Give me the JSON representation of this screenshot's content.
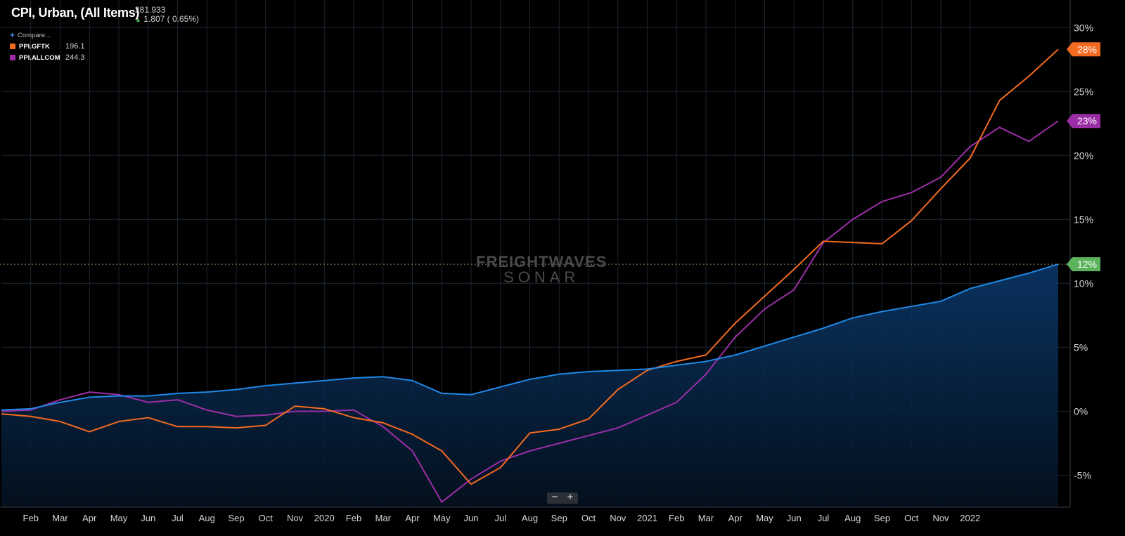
{
  "header": {
    "title": "CPI, Urban, (All Items)",
    "last_value": "281.933",
    "change": "1.807 ( 0.65%)"
  },
  "legend": {
    "compare_label": "Compare...",
    "items": [
      {
        "name": "PPI.GFTK",
        "value": "196.1",
        "color": "#f26b21"
      },
      {
        "name": "PPI.ALLCOM",
        "value": "244.3",
        "color": "#9b2ea6"
      }
    ]
  },
  "watermark": {
    "line1": "FREIGHTWAVES",
    "line2": "SONAR"
  },
  "zoom": {
    "minus": "−",
    "plus": "+"
  },
  "colors": {
    "cpi": "#1e88e5",
    "gftk": "#f26b21",
    "allcom": "#9b2ea6",
    "end_badge_cpi": "#5db35d"
  },
  "chart_data": {
    "type": "line",
    "ylim": [
      -7.5,
      31.5
    ],
    "y_ticks": [
      "-5%",
      "0%",
      "5%",
      "10%",
      "15%",
      "20%",
      "25%",
      "30%"
    ],
    "y_tick_values": [
      -5,
      0,
      5,
      10,
      15,
      20,
      25,
      30
    ],
    "x_ticks": [
      "Feb",
      "Mar",
      "Apr",
      "May",
      "Jun",
      "Jul",
      "Aug",
      "Sep",
      "Oct",
      "Nov",
      "2020",
      "Feb",
      "Mar",
      "Apr",
      "May",
      "Jun",
      "Jul",
      "Aug",
      "Sep",
      "Oct",
      "Nov",
      "2021",
      "Feb",
      "Mar",
      "Apr",
      "May",
      "Jun",
      "Jul",
      "Aug",
      "Sep",
      "Oct",
      "Nov",
      "2022"
    ],
    "x": [
      "2019-01",
      "2019-02",
      "2019-03",
      "2019-04",
      "2019-05",
      "2019-06",
      "2019-07",
      "2019-08",
      "2019-09",
      "2019-10",
      "2019-11",
      "2019-12",
      "2020-01",
      "2020-02",
      "2020-03",
      "2020-04",
      "2020-05",
      "2020-06",
      "2020-07",
      "2020-08",
      "2020-09",
      "2020-10",
      "2020-11",
      "2020-12",
      "2021-01",
      "2021-02",
      "2021-03",
      "2021-04",
      "2021-05",
      "2021-06",
      "2021-07",
      "2021-08",
      "2021-09",
      "2021-10",
      "2021-11",
      "2021-12",
      "2022-01"
    ],
    "end_labels": [
      "28%",
      "23%",
      "12%"
    ],
    "series": [
      {
        "name": "CPI, Urban, (All Items)",
        "key": "cpi",
        "values": [
          0.1,
          0.2,
          0.7,
          1.1,
          1.2,
          1.2,
          1.4,
          1.5,
          1.7,
          2.0,
          2.2,
          2.4,
          2.6,
          2.7,
          2.4,
          1.4,
          1.3,
          1.9,
          2.5,
          2.9,
          3.1,
          3.2,
          3.3,
          3.6,
          3.9,
          4.4,
          5.1,
          5.8,
          6.5,
          7.3,
          7.8,
          8.2,
          8.6,
          9.6,
          10.2,
          10.8,
          11.5
        ]
      },
      {
        "name": "PPI.GFTK",
        "key": "gftk",
        "values": [
          -0.2,
          -0.4,
          -0.8,
          -1.6,
          -0.8,
          -0.5,
          -1.2,
          -1.2,
          -1.3,
          -1.1,
          0.4,
          0.2,
          -0.5,
          -0.9,
          -1.8,
          -3.1,
          -5.7,
          -4.4,
          -1.7,
          -1.4,
          -0.6,
          1.7,
          3.2,
          3.9,
          4.4,
          6.9,
          9.0,
          11.1,
          13.3,
          13.2,
          13.1,
          14.9,
          17.4,
          19.8,
          24.3,
          26.2,
          28.3
        ]
      },
      {
        "name": "PPI.ALLCOM",
        "key": "allcom",
        "values": [
          0.0,
          0.1,
          0.9,
          1.5,
          1.3,
          0.7,
          0.9,
          0.1,
          -0.4,
          -0.3,
          0.0,
          0.0,
          0.1,
          -1.2,
          -3.1,
          -7.1,
          -5.3,
          -3.9,
          -3.1,
          -2.5,
          -1.9,
          -1.3,
          -0.3,
          0.7,
          2.9,
          5.8,
          8.0,
          9.5,
          13.2,
          15.0,
          16.4,
          17.1,
          18.3,
          20.7,
          22.2,
          21.1,
          22.7
        ]
      }
    ]
  }
}
